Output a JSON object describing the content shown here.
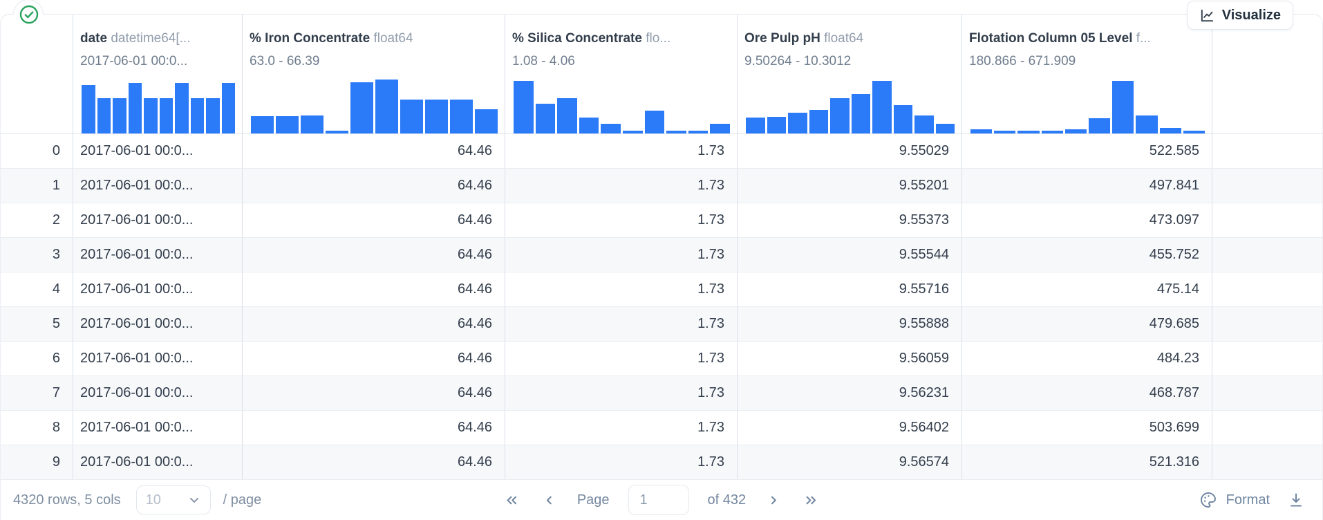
{
  "status": {
    "icon": "check-circle",
    "color": "#29a35c"
  },
  "visualize_button": {
    "label": "Visualize"
  },
  "colors": {
    "bar_blue": "#2b7af7",
    "row_alt": "#f7f8fa",
    "border": "#d9dfe7"
  },
  "table": {
    "columns": [
      {
        "name": "date",
        "type": "datetime64[...",
        "range": "2017-06-01 00:0...",
        "align": "left",
        "histogram": [
          0.9,
          0.66,
          0.66,
          0.93,
          0.66,
          0.66,
          0.93,
          0.66,
          0.66,
          0.93
        ]
      },
      {
        "name": "% Iron Concentrate",
        "type": "float64",
        "range": "63.0 - 66.39",
        "align": "right",
        "histogram": [
          0.32,
          0.32,
          0.33,
          0.05,
          0.95,
          1.0,
          0.63,
          0.63,
          0.63,
          0.45
        ]
      },
      {
        "name": "% Silica Concentrate",
        "type": "flo...",
        "range": "1.08 - 4.06",
        "align": "right",
        "histogram": [
          0.97,
          0.55,
          0.65,
          0.3,
          0.18,
          0.05,
          0.42,
          0.05,
          0.05,
          0.18
        ]
      },
      {
        "name": "Ore Pulp pH",
        "type": "float64",
        "range": "9.50264 - 10.3012",
        "align": "right",
        "histogram": [
          0.3,
          0.31,
          0.38,
          0.43,
          0.66,
          0.73,
          0.97,
          0.52,
          0.33,
          0.18
        ]
      },
      {
        "name": "Flotation Column 05 Level",
        "type": "f...",
        "range": "180.866 - 671.909",
        "align": "right",
        "histogram": [
          0.08,
          0.05,
          0.05,
          0.05,
          0.08,
          0.28,
          0.97,
          0.33,
          0.1,
          0.05
        ]
      }
    ],
    "rows": [
      {
        "index": "0",
        "values": [
          "2017-06-01 00:0...",
          "64.46",
          "1.73",
          "9.55029",
          "522.585"
        ]
      },
      {
        "index": "1",
        "values": [
          "2017-06-01 00:0...",
          "64.46",
          "1.73",
          "9.55201",
          "497.841"
        ]
      },
      {
        "index": "2",
        "values": [
          "2017-06-01 00:0...",
          "64.46",
          "1.73",
          "9.55373",
          "473.097"
        ]
      },
      {
        "index": "3",
        "values": [
          "2017-06-01 00:0...",
          "64.46",
          "1.73",
          "9.55544",
          "455.752"
        ]
      },
      {
        "index": "4",
        "values": [
          "2017-06-01 00:0...",
          "64.46",
          "1.73",
          "9.55716",
          "475.14"
        ]
      },
      {
        "index": "5",
        "values": [
          "2017-06-01 00:0...",
          "64.46",
          "1.73",
          "9.55888",
          "479.685"
        ]
      },
      {
        "index": "6",
        "values": [
          "2017-06-01 00:0...",
          "64.46",
          "1.73",
          "9.56059",
          "484.23"
        ]
      },
      {
        "index": "7",
        "values": [
          "2017-06-01 00:0...",
          "64.46",
          "1.73",
          "9.56231",
          "468.787"
        ]
      },
      {
        "index": "8",
        "values": [
          "2017-06-01 00:0...",
          "64.46",
          "1.73",
          "9.56402",
          "503.699"
        ]
      },
      {
        "index": "9",
        "values": [
          "2017-06-01 00:0...",
          "64.46",
          "1.73",
          "9.56574",
          "521.316"
        ]
      }
    ]
  },
  "footer": {
    "summary": "4320 rows, 5 cols",
    "page_size": "10",
    "page_size_suffix": "/ page",
    "pagination": {
      "label": "Page",
      "current": "1",
      "total": "of 432"
    },
    "format_label": "Format"
  }
}
